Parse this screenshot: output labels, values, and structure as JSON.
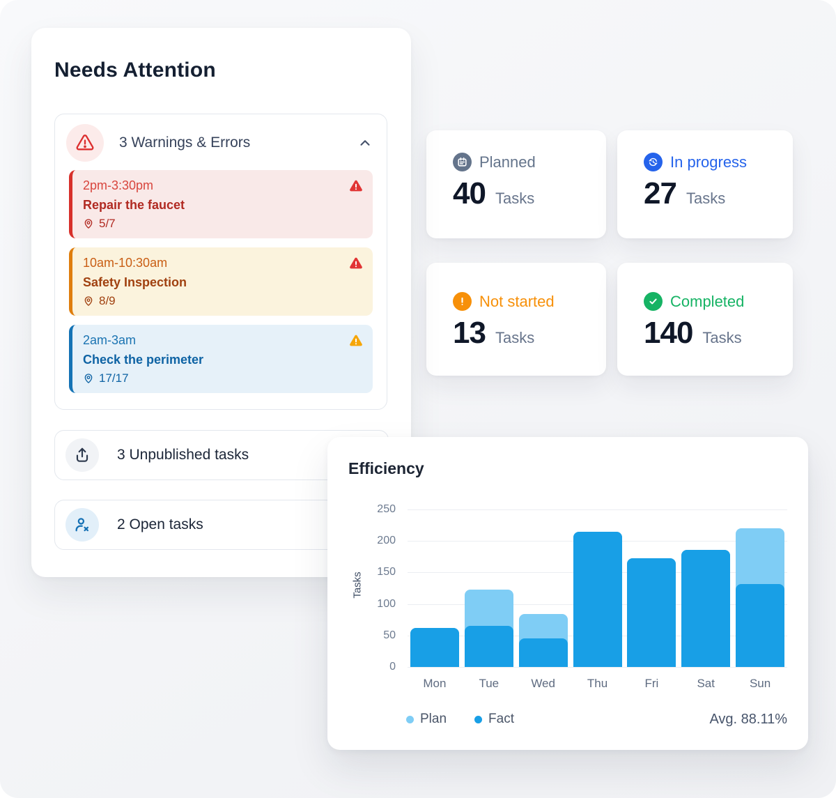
{
  "needs_attention": {
    "title": "Needs Attention",
    "warnings_group": {
      "title": "3 Warnings & Errors",
      "items": [
        {
          "time": "2pm-3:30pm",
          "title": "Repair the faucet",
          "progress": "5/7",
          "severity": "error",
          "accent_color": "#D7302B"
        },
        {
          "time": "10am-10:30am",
          "title": "Safety Inspection",
          "progress": "8/9",
          "severity": "error",
          "accent_color": "#DF7E0D"
        },
        {
          "time": "2am-3am",
          "title": "Check the perimeter",
          "progress": "17/17",
          "severity": "warning",
          "accent_color": "#1473B5"
        }
      ]
    },
    "unpublished_row": {
      "label": "3 Unpublished tasks"
    },
    "open_row": {
      "label": "2 Open tasks"
    }
  },
  "stats": [
    {
      "label": "Planned",
      "value": "40",
      "unit": "Tasks",
      "color": "#64748B"
    },
    {
      "label": "In progress",
      "value": "27",
      "unit": "Tasks",
      "color": "#2563EB"
    },
    {
      "label": "Not started",
      "value": "13",
      "unit": "Tasks",
      "color": "#F79009"
    },
    {
      "label": "Completed",
      "value": "140",
      "unit": "Tasks",
      "color": "#16B364"
    }
  ],
  "chart_data": {
    "type": "bar",
    "title": "Efficiency",
    "ylabel": "Tasks",
    "categories": [
      "Mon",
      "Tue",
      "Wed",
      "Thu",
      "Fri",
      "Sat",
      "Sun"
    ],
    "series": [
      {
        "name": "Plan",
        "color": "#7FCDF5",
        "values": [
          62,
          123,
          84,
          215,
          173,
          186,
          220
        ]
      },
      {
        "name": "Fact",
        "color": "#189FE6",
        "values": [
          62,
          65,
          45,
          215,
          173,
          186,
          132
        ]
      }
    ],
    "ylim": [
      0,
      250
    ],
    "yticks": [
      0,
      50,
      100,
      150,
      200,
      250
    ],
    "grid": true,
    "bar_style": "overlapped (Fact drawn in front of Plan)",
    "legend_position": "bottom-left",
    "avg_label": "Avg. 88.11%"
  },
  "colors": {
    "error_red": "#D7302B",
    "warning_amber": "#F6A609",
    "info_blue": "#1473B5",
    "accent_blue": "#2563EB",
    "success_green": "#16B364",
    "neutral_slate": "#64748B"
  }
}
